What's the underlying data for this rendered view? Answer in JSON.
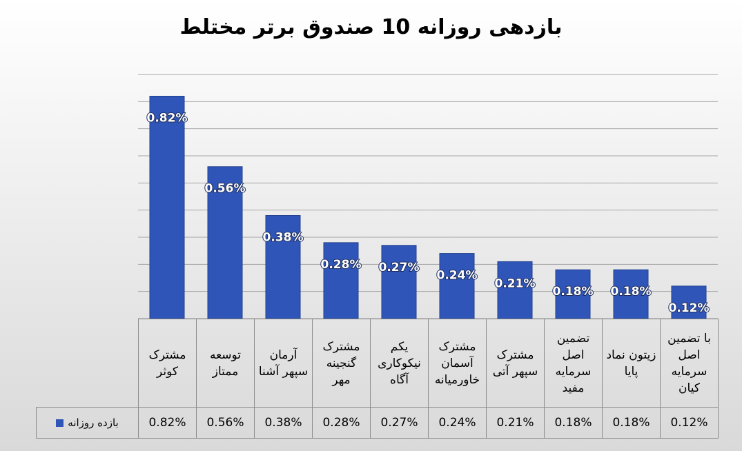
{
  "chart_data": {
    "type": "bar",
    "title": "بازدهی روزانه 10 صندوق برتر مختلط",
    "categories": [
      "مشترک کوثر",
      "توسعه ممتاز",
      "آرمان سپهر آشنا",
      "مشترک گنجینه مهر",
      "یکم نیکوکاری آگاه",
      "مشترک آسمان خاورمیانه",
      "مشترک سپهر آتی",
      "تضمین اصل سرمایه مفید",
      "زیتون نماد پایا",
      "با تضمین اصل سرمایه کیان"
    ],
    "series": [
      {
        "name": "بازده روزانه",
        "color": "#2f55b8",
        "values": [
          0.82,
          0.56,
          0.38,
          0.28,
          0.27,
          0.24,
          0.21,
          0.18,
          0.18,
          0.12
        ],
        "value_labels": [
          "0.82%",
          "0.56%",
          "0.38%",
          "0.28%",
          "0.27%",
          "0.24%",
          "0.21%",
          "0.18%",
          "0.18%",
          "0.12%"
        ]
      }
    ],
    "ylim": [
      0,
      0.9
    ],
    "yticks": [
      0,
      0.1,
      0.2,
      0.3,
      0.4,
      0.5,
      0.6,
      0.7,
      0.8,
      0.9
    ],
    "grid": true
  }
}
